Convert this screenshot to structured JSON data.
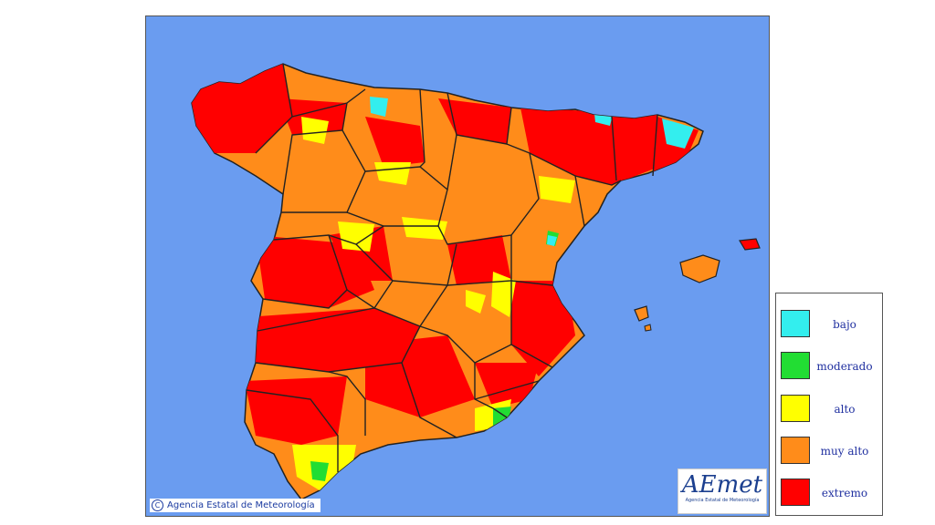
{
  "copyright": "Agencia Estatal de Meteorología",
  "copyright_symbol": "C",
  "logo": {
    "text": "AEmet",
    "subtitle": "Agencia Estatal de Meteorología"
  },
  "legend": [
    {
      "label": "bajo",
      "color": "#33eeee"
    },
    {
      "label": "moderado",
      "color": "#22dd33"
    },
    {
      "label": "alto",
      "color": "#ffff00"
    },
    {
      "label": "muy alto",
      "color": "#ff8c1a"
    },
    {
      "label": "extremo",
      "color": "#ff0000"
    }
  ],
  "colors": {
    "sea": "#6a9cf0",
    "border": "#222222"
  }
}
